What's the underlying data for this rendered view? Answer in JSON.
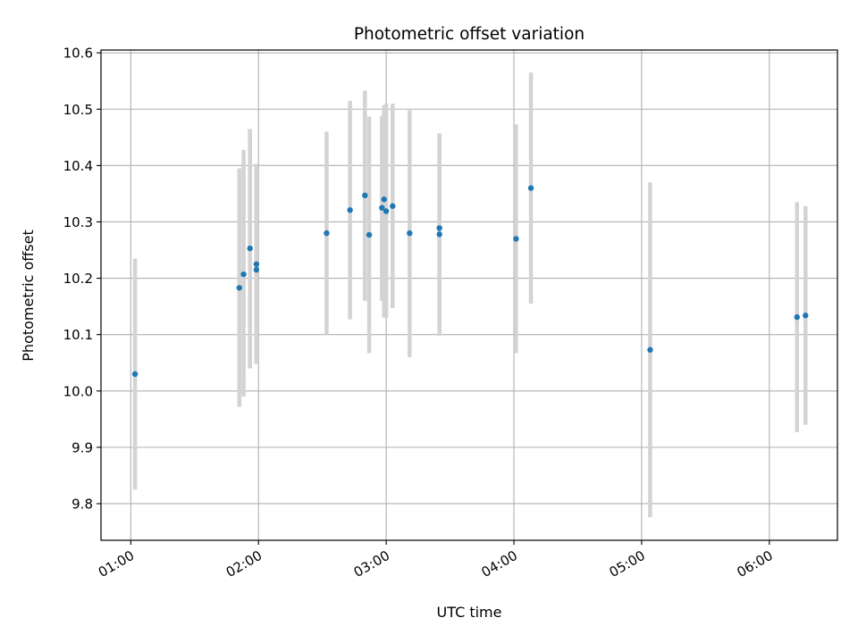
{
  "chart_data": {
    "type": "scatter",
    "title": "Photometric offset variation",
    "xlabel": "UTC time",
    "ylabel": "Photometric offset",
    "x_unit": "UTC time (HH:MM)",
    "xlim": [
      "00:46",
      "06:32"
    ],
    "ylim": [
      9.735,
      10.605
    ],
    "xticks": [
      "01:00",
      "02:00",
      "03:00",
      "04:00",
      "05:00",
      "06:00"
    ],
    "yticks": [
      9.8,
      9.9,
      10.0,
      10.1,
      10.2,
      10.3,
      10.4,
      10.5,
      10.6
    ],
    "grid": true,
    "point_color": "#1f77b4",
    "errorbar_color": "#d3d3d3",
    "points": [
      {
        "x": "01:02",
        "y": 10.03,
        "ylo": 9.825,
        "yhi": 10.235
      },
      {
        "x": "01:51",
        "y": 10.183,
        "ylo": 9.972,
        "yhi": 10.395
      },
      {
        "x": "01:53",
        "y": 10.207,
        "ylo": 9.99,
        "yhi": 10.428
      },
      {
        "x": "01:56",
        "y": 10.253,
        "ylo": 10.04,
        "yhi": 10.465
      },
      {
        "x": "01:59",
        "y": 10.215,
        "ylo": 10.048,
        "yhi": 10.403
      },
      {
        "x": "01:59",
        "y": 10.225,
        "ylo": 10.048,
        "yhi": 10.403
      },
      {
        "x": "02:32",
        "y": 10.28,
        "ylo": 10.1,
        "yhi": 10.46
      },
      {
        "x": "02:43",
        "y": 10.321,
        "ylo": 10.127,
        "yhi": 10.515
      },
      {
        "x": "02:50",
        "y": 10.347,
        "ylo": 10.16,
        "yhi": 10.533
      },
      {
        "x": "02:52",
        "y": 10.277,
        "ylo": 10.067,
        "yhi": 10.487
      },
      {
        "x": "02:58",
        "y": 10.325,
        "ylo": 10.16,
        "yhi": 10.488
      },
      {
        "x": "02:59",
        "y": 10.34,
        "ylo": 10.13,
        "yhi": 10.507
      },
      {
        "x": "03:00",
        "y": 10.319,
        "ylo": 10.13,
        "yhi": 10.51
      },
      {
        "x": "03:03",
        "y": 10.328,
        "ylo": 10.147,
        "yhi": 10.51
      },
      {
        "x": "03:11",
        "y": 10.28,
        "ylo": 10.06,
        "yhi": 10.498
      },
      {
        "x": "03:25",
        "y": 10.289,
        "ylo": 10.098,
        "yhi": 10.457
      },
      {
        "x": "03:25",
        "y": 10.278,
        "ylo": 10.098,
        "yhi": 10.457
      },
      {
        "x": "04:01",
        "y": 10.27,
        "ylo": 10.067,
        "yhi": 10.473
      },
      {
        "x": "04:08",
        "y": 10.36,
        "ylo": 10.155,
        "yhi": 10.565
      },
      {
        "x": "05:04",
        "y": 10.073,
        "ylo": 9.776,
        "yhi": 10.37
      },
      {
        "x": "06:13",
        "y": 10.131,
        "ylo": 9.927,
        "yhi": 10.335
      },
      {
        "x": "06:17",
        "y": 10.134,
        "ylo": 9.94,
        "yhi": 10.328
      }
    ]
  }
}
